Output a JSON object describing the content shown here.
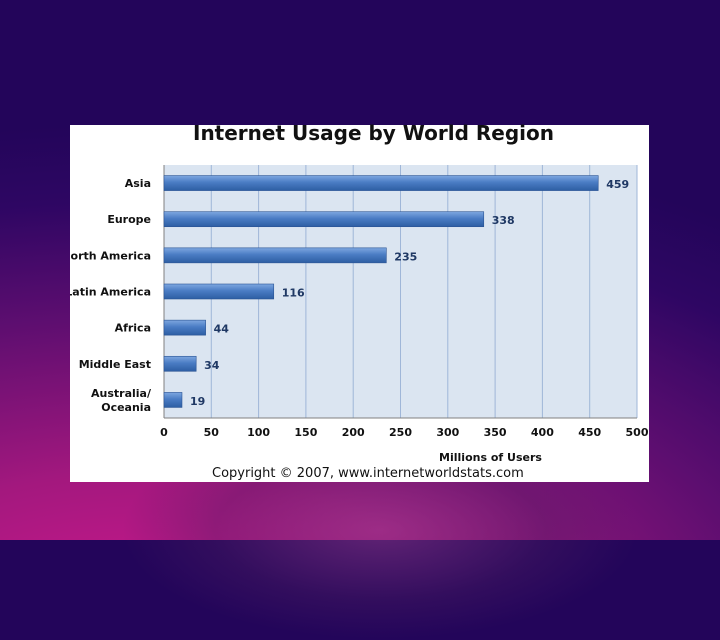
{
  "chart_data": {
    "type": "bar",
    "orientation": "horizontal",
    "title": "Internet Usage by World Region",
    "categories": [
      "Asia",
      "Europe",
      "North America",
      "Latin America",
      "Africa",
      "Middle East",
      "Australia/\nOceania"
    ],
    "values": [
      459,
      338,
      235,
      116,
      44,
      34,
      19
    ],
    "xlabel": "Millions of Users",
    "ylabel": "",
    "xlim": [
      0,
      500
    ],
    "xticks": [
      0,
      50,
      100,
      150,
      200,
      250,
      300,
      350,
      400,
      450,
      500
    ],
    "grid": "vertical",
    "bar_color": "#4a7cc4",
    "plot_background": "#dbe5f1",
    "gridline_color": "#9fb6d8"
  },
  "footer": "Copyright © 2007, www.internetworldstats.com"
}
